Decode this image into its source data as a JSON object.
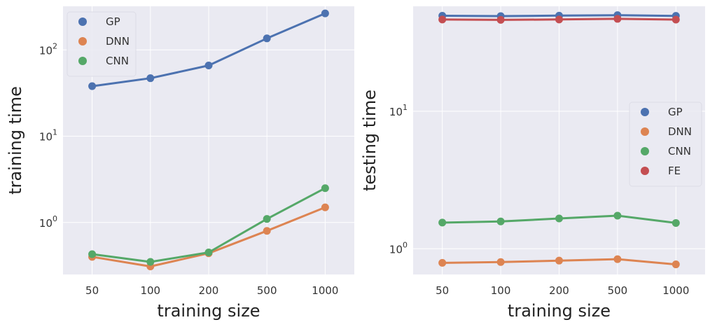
{
  "chart_data": [
    {
      "type": "line",
      "title": "",
      "xlabel": "training size",
      "ylabel": "training time",
      "yscale": "log",
      "ylim": [
        0.25,
        320
      ],
      "grid": true,
      "legend_location": "upper-left",
      "categories": [
        "50",
        "100",
        "200",
        "500",
        "1000"
      ],
      "y_ticks": [
        {
          "base": "10",
          "exp": "0",
          "value": 1
        },
        {
          "base": "10",
          "exp": "1",
          "value": 10
        },
        {
          "base": "10",
          "exp": "2",
          "value": 100
        }
      ],
      "series": [
        {
          "name": "GP",
          "color": "#4c72b0",
          "values": [
            38,
            47,
            66,
            136,
            265
          ]
        },
        {
          "name": "DNN",
          "color": "#dd8452",
          "values": [
            0.4,
            0.31,
            0.44,
            0.8,
            1.5
          ]
        },
        {
          "name": "CNN",
          "color": "#55a868",
          "values": [
            0.43,
            0.35,
            0.45,
            1.1,
            2.5
          ]
        }
      ]
    },
    {
      "type": "line",
      "title": "",
      "xlabel": "training size",
      "ylabel": "testing time",
      "yscale": "log",
      "ylim": [
        0.65,
        58
      ],
      "grid": true,
      "legend_location": "center-right",
      "categories": [
        "50",
        "100",
        "200",
        "500",
        "1000"
      ],
      "y_ticks": [
        {
          "base": "10",
          "exp": "0",
          "value": 1
        },
        {
          "base": "10",
          "exp": "1",
          "value": 10
        }
      ],
      "series": [
        {
          "name": "GP",
          "color": "#4c72b0",
          "values": [
            49.5,
            49.2,
            49.6,
            50,
            49.4
          ]
        },
        {
          "name": "DNN",
          "color": "#dd8452",
          "values": [
            0.79,
            0.8,
            0.82,
            0.84,
            0.77
          ]
        },
        {
          "name": "CNN",
          "color": "#55a868",
          "values": [
            1.55,
            1.58,
            1.66,
            1.74,
            1.54
          ]
        },
        {
          "name": "FE",
          "color": "#c44e52",
          "values": [
            46.5,
            46.2,
            46.5,
            47,
            46.4
          ]
        }
      ]
    }
  ]
}
